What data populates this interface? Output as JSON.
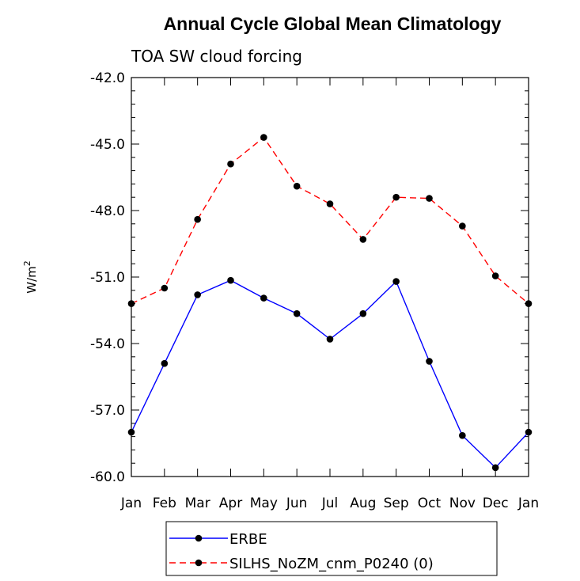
{
  "chart_data": {
    "type": "line",
    "title": "Annual Cycle Global Mean Climatology",
    "subtitle": "TOA SW cloud forcing",
    "ylabel": "W/m",
    "ylabel_sup": "2",
    "ylim": [
      -60.0,
      -42.0
    ],
    "yticks": [
      -60.0,
      -57.0,
      -54.0,
      -51.0,
      -48.0,
      -45.0,
      -42.0
    ],
    "ytick_labels": [
      "-60.0",
      "-57.0",
      "-54.0",
      "-51.0",
      "-48.0",
      "-45.0",
      "-42.0"
    ],
    "categories": [
      "Jan",
      "Feb",
      "Mar",
      "Apr",
      "May",
      "Jun",
      "Jul",
      "Aug",
      "Sep",
      "Oct",
      "Nov",
      "Dec",
      "Jan"
    ],
    "series": [
      {
        "name": "ERBE",
        "color": "#0000ff",
        "dash": "solid",
        "values": [
          -58.0,
          -54.9,
          -51.8,
          -51.15,
          -51.95,
          -52.65,
          -53.8,
          -52.65,
          -51.2,
          -54.8,
          -58.15,
          -59.6,
          -58.0
        ]
      },
      {
        "name": "SILHS_NoZM_cnm_P0240 (0)",
        "color": "#ff0000",
        "dash": "dashed",
        "values": [
          -52.2,
          -51.5,
          -48.4,
          -45.9,
          -44.7,
          -46.9,
          -47.7,
          -49.3,
          -47.4,
          -47.45,
          -48.7,
          -50.95,
          -52.2
        ]
      }
    ],
    "grid": false,
    "legend_position": "bottom"
  }
}
